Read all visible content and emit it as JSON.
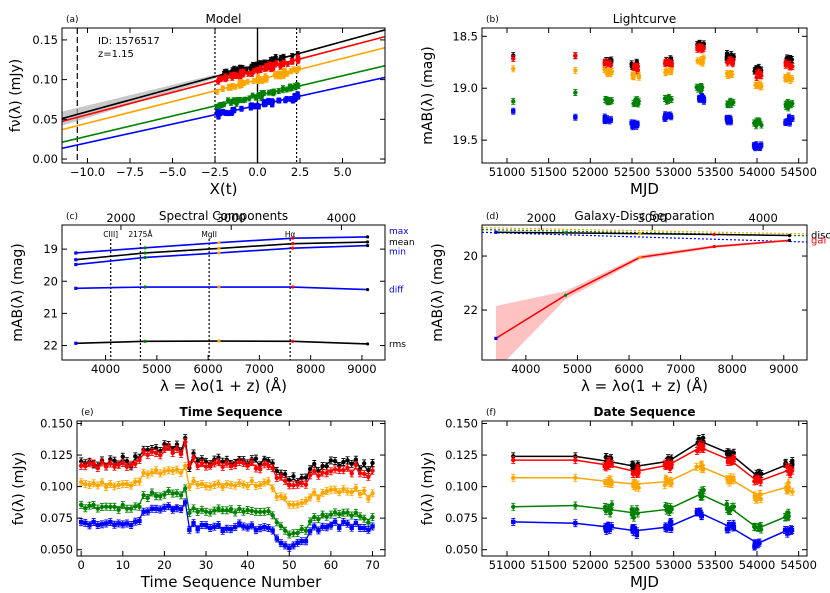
{
  "colors": {
    "black": "#000000",
    "red": "#ff0000",
    "orange": "#ffa500",
    "green": "#008000",
    "blue": "#0000ff",
    "band": "#ffb3b3"
  },
  "chart_data": [
    {
      "id": "a",
      "panel_label": "(a)",
      "type": "scatter",
      "title": "Model",
      "xlabel": "X(t)",
      "ylabel": "fν(λ) (mJy)",
      "xlim": [
        -11.5,
        7.5
      ],
      "ylim": [
        -0.005,
        0.165
      ],
      "xticks": [
        -10.0,
        -7.5,
        -5.0,
        -2.5,
        0.0,
        2.5,
        5.0
      ],
      "xtick_labels": [
        "−10.0",
        "−7.5",
        "−5.0",
        "−2.5",
        "0.0",
        "2.5",
        "5.0"
      ],
      "yticks": [
        0.0,
        0.05,
        0.1,
        0.15
      ],
      "ytick_labels": [
        "0.00",
        "0.05",
        "0.10",
        "0.15"
      ],
      "annotations": [
        "ID: 1576517",
        "z=1.15"
      ],
      "vlines": [
        {
          "x": -10.6,
          "style": "dashed"
        },
        {
          "x": -2.5,
          "style": "dotted"
        },
        {
          "x": 0.0,
          "style": "solid"
        },
        {
          "x": 2.3,
          "style": "dotted"
        }
      ],
      "series": [
        {
          "name": "black",
          "color": "#000000",
          "slope": 0.00588,
          "intercept": 0.1185,
          "cluster_x": [
            -2.4,
            2.5
          ]
        },
        {
          "name": "red",
          "color": "#ff0000",
          "slope": 0.00561,
          "intercept": 0.112,
          "cluster_x": [
            -2.4,
            2.5
          ]
        },
        {
          "name": "orange",
          "color": "#ffa500",
          "slope": 0.00543,
          "intercept": 0.0995,
          "cluster_x": [
            -2.4,
            2.5
          ]
        },
        {
          "name": "green",
          "color": "#008000",
          "slope": 0.00507,
          "intercept": 0.0795,
          "cluster_x": [
            -2.4,
            2.5
          ]
        },
        {
          "name": "blue",
          "color": "#0000ff",
          "slope": 0.0047,
          "intercept": 0.0675,
          "cluster_x": [
            -2.4,
            2.5
          ]
        }
      ]
    },
    {
      "id": "b",
      "panel_label": "(b)",
      "type": "scatter",
      "title": "Lightcurve",
      "xlabel": "MJD",
      "ylabel": "mAB(λ) (mag)",
      "xlim": [
        50700,
        54600
      ],
      "ylim": [
        19.72,
        18.42
      ],
      "inverted_y": true,
      "xticks": [
        51000,
        51500,
        52000,
        52500,
        53000,
        53500,
        54000,
        54500
      ],
      "xtick_labels": [
        "51000",
        "51500",
        "52000",
        "52500",
        "53000",
        "53500",
        "54000",
        "54500"
      ],
      "yticks": [
        18.5,
        19.0,
        19.5
      ],
      "ytick_labels": [
        "18.5",
        "19.0",
        "19.5"
      ],
      "dates": [
        51075,
        51820,
        52215,
        52540,
        52935,
        53320,
        53680,
        54010,
        54380
      ],
      "series": [
        {
          "name": "black",
          "color": "#000000",
          "values": [
            18.68,
            18.69,
            18.74,
            18.78,
            18.74,
            18.58,
            18.7,
            18.82,
            18.72
          ]
        },
        {
          "name": "red",
          "color": "#ff0000",
          "values": [
            18.7,
            18.72,
            18.77,
            18.81,
            18.76,
            18.62,
            18.74,
            18.87,
            18.77
          ]
        },
        {
          "name": "orange",
          "color": "#ffa500",
          "values": [
            18.82,
            18.81,
            18.85,
            18.88,
            18.85,
            18.74,
            18.86,
            18.98,
            18.9
          ]
        },
        {
          "name": "green",
          "color": "#008000",
          "values": [
            19.09,
            19.06,
            19.12,
            19.14,
            19.11,
            18.99,
            19.14,
            19.33,
            19.16
          ]
        },
        {
          "name": "blue",
          "color": "#0000ff",
          "values": [
            19.22,
            19.26,
            19.3,
            19.34,
            19.28,
            19.1,
            19.3,
            19.55,
            19.31
          ]
        }
      ]
    },
    {
      "id": "c",
      "panel_label": "(c)",
      "type": "line",
      "title": "Spectral Components",
      "xlabel": "λ = λo(1 + z) (Å)",
      "ylabel": "mAB(λ) (mag)",
      "xlim": [
        3150,
        9450
      ],
      "ylim": [
        22.45,
        18.25
      ],
      "inverted_y": true,
      "xticks": [
        4000,
        5000,
        6000,
        7000,
        8000,
        9000
      ],
      "xtick_labels": [
        "4000",
        "5000",
        "6000",
        "7000",
        "8000",
        "9000"
      ],
      "top_xticks": [
        2000,
        3000,
        4000
      ],
      "top_xtick_labels": [
        "2000",
        "3000",
        "4000"
      ],
      "yticks": [
        19,
        20,
        21,
        22
      ],
      "ytick_labels": [
        "19",
        "20",
        "21",
        "22"
      ],
      "lines": [
        {
          "label": "CIII]",
          "x": 4100
        },
        {
          "label": "2175Å",
          "x": 4680
        },
        {
          "label": "MgII",
          "x": 6020
        },
        {
          "label": "Hα",
          "x": 7600
        }
      ],
      "x": [
        3420,
        4770,
        6210,
        7650,
        9110
      ],
      "series": [
        {
          "name": "max",
          "color": "#0000ff",
          "values": [
            19.12,
            18.96,
            18.8,
            18.66,
            18.62
          ]
        },
        {
          "name": "mean",
          "color": "#000000",
          "values": [
            19.33,
            19.12,
            18.98,
            18.83,
            18.78
          ]
        },
        {
          "name": "min",
          "color": "#0000ff",
          "values": [
            19.48,
            19.26,
            19.12,
            18.97,
            18.89
          ]
        },
        {
          "name": "diff",
          "color": "#0000ff",
          "values": [
            20.22,
            20.18,
            20.18,
            20.18,
            20.26
          ]
        },
        {
          "name": "rms",
          "color": "#000000",
          "values": [
            21.93,
            21.87,
            21.86,
            21.87,
            21.95
          ]
        }
      ]
    },
    {
      "id": "d",
      "panel_label": "(d)",
      "type": "line",
      "title": "Galaxy-Disc Separation",
      "xlabel": "λ = λo(1 + z) (Å)",
      "ylabel": "mAB(λ) (mag)",
      "xlim": [
        3150,
        9450
      ],
      "ylim": [
        23.85,
        18.85
      ],
      "inverted_y": true,
      "xticks": [
        4000,
        5000,
        6000,
        7000,
        8000,
        9000
      ],
      "xtick_labels": [
        "4000",
        "5000",
        "6000",
        "7000",
        "8000",
        "9000"
      ],
      "top_xticks": [
        2000,
        3000,
        4000
      ],
      "top_xtick_labels": [
        "2000",
        "3000",
        "4000"
      ],
      "yticks": [
        20,
        22
      ],
      "ytick_labels": [
        "20",
        "22"
      ],
      "x": [
        3420,
        4770,
        6210,
        7650,
        9110
      ],
      "series": [
        {
          "name": "disc",
          "color": "#000000",
          "values": [
            19.12,
            19.14,
            19.17,
            19.2,
            19.24
          ]
        },
        {
          "name": "gal",
          "color": "#ff0000",
          "values": [
            23.05,
            21.45,
            20.05,
            19.65,
            19.42
          ],
          "band": [
            1.2,
            0.15,
            0.08,
            0.05,
            0.04
          ]
        }
      ],
      "dotted": [
        {
          "color": "#ffa500",
          "from": 18.95,
          "to": 19.18
        },
        {
          "color": "#008000",
          "from": 19.02,
          "to": 19.25
        },
        {
          "color": "#0000ff",
          "from": 19.12,
          "to": 19.48
        }
      ]
    },
    {
      "id": "e",
      "panel_label": "(e)",
      "type": "line",
      "title": "Time Sequence",
      "xlabel": "Time Sequence Number",
      "ylabel": "fν(λ) (mJy)",
      "xlim": [
        -1,
        73
      ],
      "ylim": [
        0.045,
        0.152
      ],
      "xticks": [
        0,
        10,
        20,
        30,
        40,
        50,
        60,
        70
      ],
      "xtick_labels": [
        "0",
        "10",
        "20",
        "30",
        "40",
        "50",
        "60",
        "70"
      ],
      "yticks": [
        0.05,
        0.075,
        0.1,
        0.125,
        0.15
      ],
      "ytick_labels": [
        "0.050",
        "0.075",
        "0.100",
        "0.125",
        "0.150"
      ],
      "series": [
        {
          "name": "black",
          "color": "#000000",
          "values": [
            0.121,
            0.118,
            0.12,
            0.119,
            0.116,
            0.121,
            0.117,
            0.121,
            0.12,
            0.118,
            0.122,
            0.119,
            0.117,
            0.122,
            0.124,
            0.129,
            0.128,
            0.131,
            0.13,
            0.127,
            0.132,
            0.133,
            0.13,
            0.133,
            0.128,
            0.138,
            0.114,
            0.126,
            0.121,
            0.123,
            0.12,
            0.118,
            0.122,
            0.122,
            0.118,
            0.122,
            0.119,
            0.12,
            0.123,
            0.121,
            0.118,
            0.122,
            0.12,
            0.117,
            0.123,
            0.121,
            0.117,
            0.112,
            0.11,
            0.109,
            0.104,
            0.106,
            0.104,
            0.108,
            0.106,
            0.114,
            0.118,
            0.112,
            0.115,
            0.118,
            0.12,
            0.121,
            0.117,
            0.119,
            0.121,
            0.117,
            0.122,
            0.114,
            0.117,
            0.112,
            0.118
          ]
        },
        {
          "name": "red",
          "color": "#ff0000",
          "values": [
            0.118,
            0.116,
            0.117,
            0.118,
            0.114,
            0.119,
            0.116,
            0.118,
            0.117,
            0.117,
            0.118,
            0.116,
            0.116,
            0.119,
            0.121,
            0.126,
            0.126,
            0.127,
            0.127,
            0.124,
            0.128,
            0.13,
            0.128,
            0.13,
            0.126,
            0.134,
            0.115,
            0.121,
            0.116,
            0.117,
            0.116,
            0.116,
            0.118,
            0.118,
            0.116,
            0.118,
            0.117,
            0.117,
            0.12,
            0.118,
            0.116,
            0.118,
            0.116,
            0.115,
            0.119,
            0.118,
            0.114,
            0.107,
            0.106,
            0.104,
            0.1,
            0.101,
            0.101,
            0.103,
            0.102,
            0.108,
            0.112,
            0.108,
            0.11,
            0.112,
            0.113,
            0.114,
            0.112,
            0.113,
            0.114,
            0.111,
            0.115,
            0.11,
            0.111,
            0.107,
            0.111
          ]
        },
        {
          "name": "orange",
          "color": "#ffa500",
          "values": [
            0.103,
            0.101,
            0.102,
            0.102,
            0.1,
            0.103,
            0.101,
            0.102,
            0.101,
            0.101,
            0.102,
            0.101,
            0.101,
            0.103,
            0.104,
            0.111,
            0.11,
            0.111,
            0.111,
            0.11,
            0.112,
            0.113,
            0.112,
            0.113,
            0.11,
            0.116,
            0.1,
            0.104,
            0.102,
            0.102,
            0.101,
            0.1,
            0.102,
            0.102,
            0.101,
            0.102,
            0.101,
            0.101,
            0.103,
            0.102,
            0.101,
            0.102,
            0.101,
            0.1,
            0.103,
            0.102,
            0.1,
            0.093,
            0.091,
            0.089,
            0.085,
            0.086,
            0.086,
            0.088,
            0.087,
            0.092,
            0.095,
            0.092,
            0.094,
            0.095,
            0.097,
            0.097,
            0.095,
            0.097,
            0.097,
            0.095,
            0.098,
            0.094,
            0.095,
            0.091,
            0.095
          ]
        },
        {
          "name": "green",
          "color": "#008000",
          "values": [
            0.085,
            0.083,
            0.084,
            0.084,
            0.082,
            0.085,
            0.083,
            0.084,
            0.084,
            0.083,
            0.084,
            0.083,
            0.083,
            0.085,
            0.086,
            0.093,
            0.092,
            0.094,
            0.094,
            0.093,
            0.095,
            0.096,
            0.095,
            0.096,
            0.093,
            0.099,
            0.08,
            0.083,
            0.081,
            0.081,
            0.08,
            0.08,
            0.081,
            0.081,
            0.08,
            0.081,
            0.08,
            0.08,
            0.082,
            0.081,
            0.08,
            0.081,
            0.08,
            0.079,
            0.081,
            0.08,
            0.078,
            0.072,
            0.069,
            0.066,
            0.062,
            0.063,
            0.064,
            0.066,
            0.066,
            0.072,
            0.077,
            0.074,
            0.076,
            0.077,
            0.078,
            0.079,
            0.077,
            0.078,
            0.079,
            0.076,
            0.079,
            0.075,
            0.076,
            0.073,
            0.077
          ]
        },
        {
          "name": "blue",
          "color": "#0000ff",
          "values": [
            0.071,
            0.07,
            0.071,
            0.071,
            0.069,
            0.071,
            0.07,
            0.071,
            0.07,
            0.07,
            0.071,
            0.07,
            0.07,
            0.072,
            0.074,
            0.081,
            0.08,
            0.083,
            0.083,
            0.082,
            0.084,
            0.085,
            0.083,
            0.085,
            0.081,
            0.088,
            0.067,
            0.07,
            0.068,
            0.069,
            0.068,
            0.067,
            0.068,
            0.068,
            0.067,
            0.068,
            0.067,
            0.067,
            0.069,
            0.068,
            0.067,
            0.068,
            0.067,
            0.066,
            0.068,
            0.067,
            0.065,
            0.058,
            0.055,
            0.054,
            0.052,
            0.054,
            0.055,
            0.057,
            0.058,
            0.064,
            0.069,
            0.066,
            0.068,
            0.069,
            0.071,
            0.072,
            0.069,
            0.071,
            0.071,
            0.068,
            0.072,
            0.067,
            0.068,
            0.065,
            0.068
          ]
        }
      ]
    },
    {
      "id": "f",
      "panel_label": "(f)",
      "type": "line",
      "title": "Date Sequence",
      "xlabel": "MJD",
      "ylabel": "fν(λ) (mJy)",
      "xlim": [
        50700,
        54600
      ],
      "ylim": [
        0.045,
        0.152
      ],
      "xticks": [
        51000,
        51500,
        52000,
        52500,
        53000,
        53500,
        54000,
        54500
      ],
      "xtick_labels": [
        "51000",
        "51500",
        "52000",
        "52500",
        "53000",
        "53500",
        "54000",
        "54500"
      ],
      "yticks": [
        0.05,
        0.075,
        0.1,
        0.125,
        0.15
      ],
      "ytick_labels": [
        "0.050",
        "0.075",
        "0.100",
        "0.125",
        "0.150"
      ],
      "dates": [
        51075,
        51820,
        52215,
        52540,
        52935,
        53320,
        53680,
        54010,
        54380
      ],
      "series": [
        {
          "name": "black",
          "color": "#000000",
          "values": [
            0.124,
            0.124,
            0.12,
            0.116,
            0.12,
            0.136,
            0.126,
            0.108,
            0.118
          ]
        },
        {
          "name": "red",
          "color": "#ff0000",
          "values": [
            0.121,
            0.121,
            0.117,
            0.112,
            0.117,
            0.131,
            0.121,
            0.104,
            0.113
          ]
        },
        {
          "name": "orange",
          "color": "#ffa500",
          "values": [
            0.107,
            0.107,
            0.104,
            0.102,
            0.104,
            0.116,
            0.106,
            0.093,
            0.1
          ]
        },
        {
          "name": "green",
          "color": "#008000",
          "values": [
            0.084,
            0.085,
            0.082,
            0.079,
            0.082,
            0.094,
            0.083,
            0.067,
            0.077
          ]
        },
        {
          "name": "blue",
          "color": "#0000ff",
          "values": [
            0.072,
            0.071,
            0.068,
            0.065,
            0.068,
            0.079,
            0.068,
            0.055,
            0.066
          ]
        }
      ]
    }
  ]
}
